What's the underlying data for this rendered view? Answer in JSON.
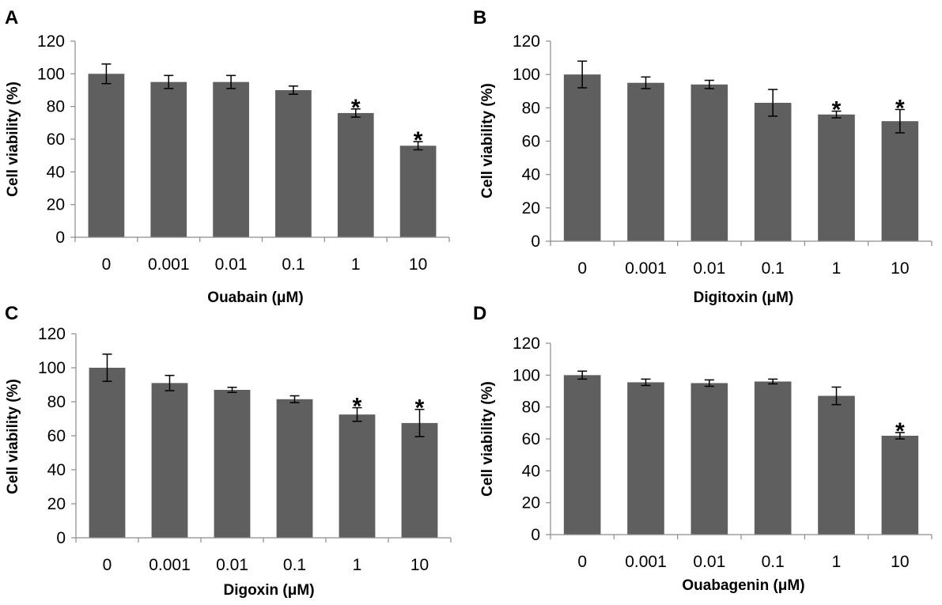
{
  "chart_data": [
    {
      "type": "bar",
      "panel_label": "A",
      "title": "",
      "xlabel": "Ouabain (μM)",
      "ylabel": "Cell viability (%)",
      "categories": [
        "0",
        "0.001",
        "0.01",
        "0.1",
        "1",
        "10"
      ],
      "values": [
        100,
        95,
        95,
        90,
        76,
        56
      ],
      "errors": [
        6,
        4,
        4,
        2.5,
        2.5,
        2.5
      ],
      "significance": [
        "",
        "",
        "",
        "",
        "*",
        "*"
      ],
      "ylim": [
        0,
        120
      ],
      "yticks": [
        "0",
        "20",
        "40",
        "60",
        "80",
        "100",
        "120"
      ],
      "grid": false,
      "bar_color": "#5f5f5f"
    },
    {
      "type": "bar",
      "panel_label": "B",
      "title": "",
      "xlabel": "Digitoxin (μM)",
      "ylabel": "Cell viability (%)",
      "categories": [
        "0",
        "0.001",
        "0.01",
        "0.1",
        "1",
        "10"
      ],
      "values": [
        100,
        95,
        94,
        83,
        76,
        72
      ],
      "errors": [
        8,
        3.5,
        2.5,
        8,
        2,
        7
      ],
      "significance": [
        "",
        "",
        "",
        "",
        "*",
        "*"
      ],
      "ylim": [
        0,
        120
      ],
      "yticks": [
        "0",
        "20",
        "40",
        "60",
        "80",
        "100",
        "120"
      ],
      "grid": false,
      "bar_color": "#5f5f5f"
    },
    {
      "type": "bar",
      "panel_label": "C",
      "title": "",
      "xlabel": "Digoxin (μM)",
      "ylabel": "Cell viability (%)",
      "categories": [
        "0",
        "0.001",
        "0.01",
        "0.1",
        "1",
        "10"
      ],
      "values": [
        100,
        91,
        87,
        81.5,
        72.5,
        67.5
      ],
      "errors": [
        8,
        4.5,
        1.5,
        2,
        4,
        8
      ],
      "significance": [
        "",
        "",
        "",
        "",
        "*",
        "*"
      ],
      "ylim": [
        0,
        120
      ],
      "yticks": [
        "0",
        "20",
        "40",
        "60",
        "80",
        "100",
        "120"
      ],
      "grid": false,
      "bar_color": "#5f5f5f"
    },
    {
      "type": "bar",
      "panel_label": "D",
      "title": "",
      "xlabel": "Ouabagenin (μM)",
      "ylabel": "Cell viability (%)",
      "categories": [
        "0",
        "0.001",
        "0.01",
        "0.1",
        "1",
        "10"
      ],
      "values": [
        100,
        95.5,
        95,
        96,
        87,
        62
      ],
      "errors": [
        2.5,
        2,
        2,
        1.5,
        5.5,
        2
      ],
      "significance": [
        "",
        "",
        "",
        "",
        "",
        "*"
      ],
      "ylim": [
        0,
        120
      ],
      "yticks": [
        "0",
        "20",
        "40",
        "60",
        "80",
        "100",
        "120"
      ],
      "grid": false,
      "bar_color": "#5f5f5f"
    }
  ]
}
